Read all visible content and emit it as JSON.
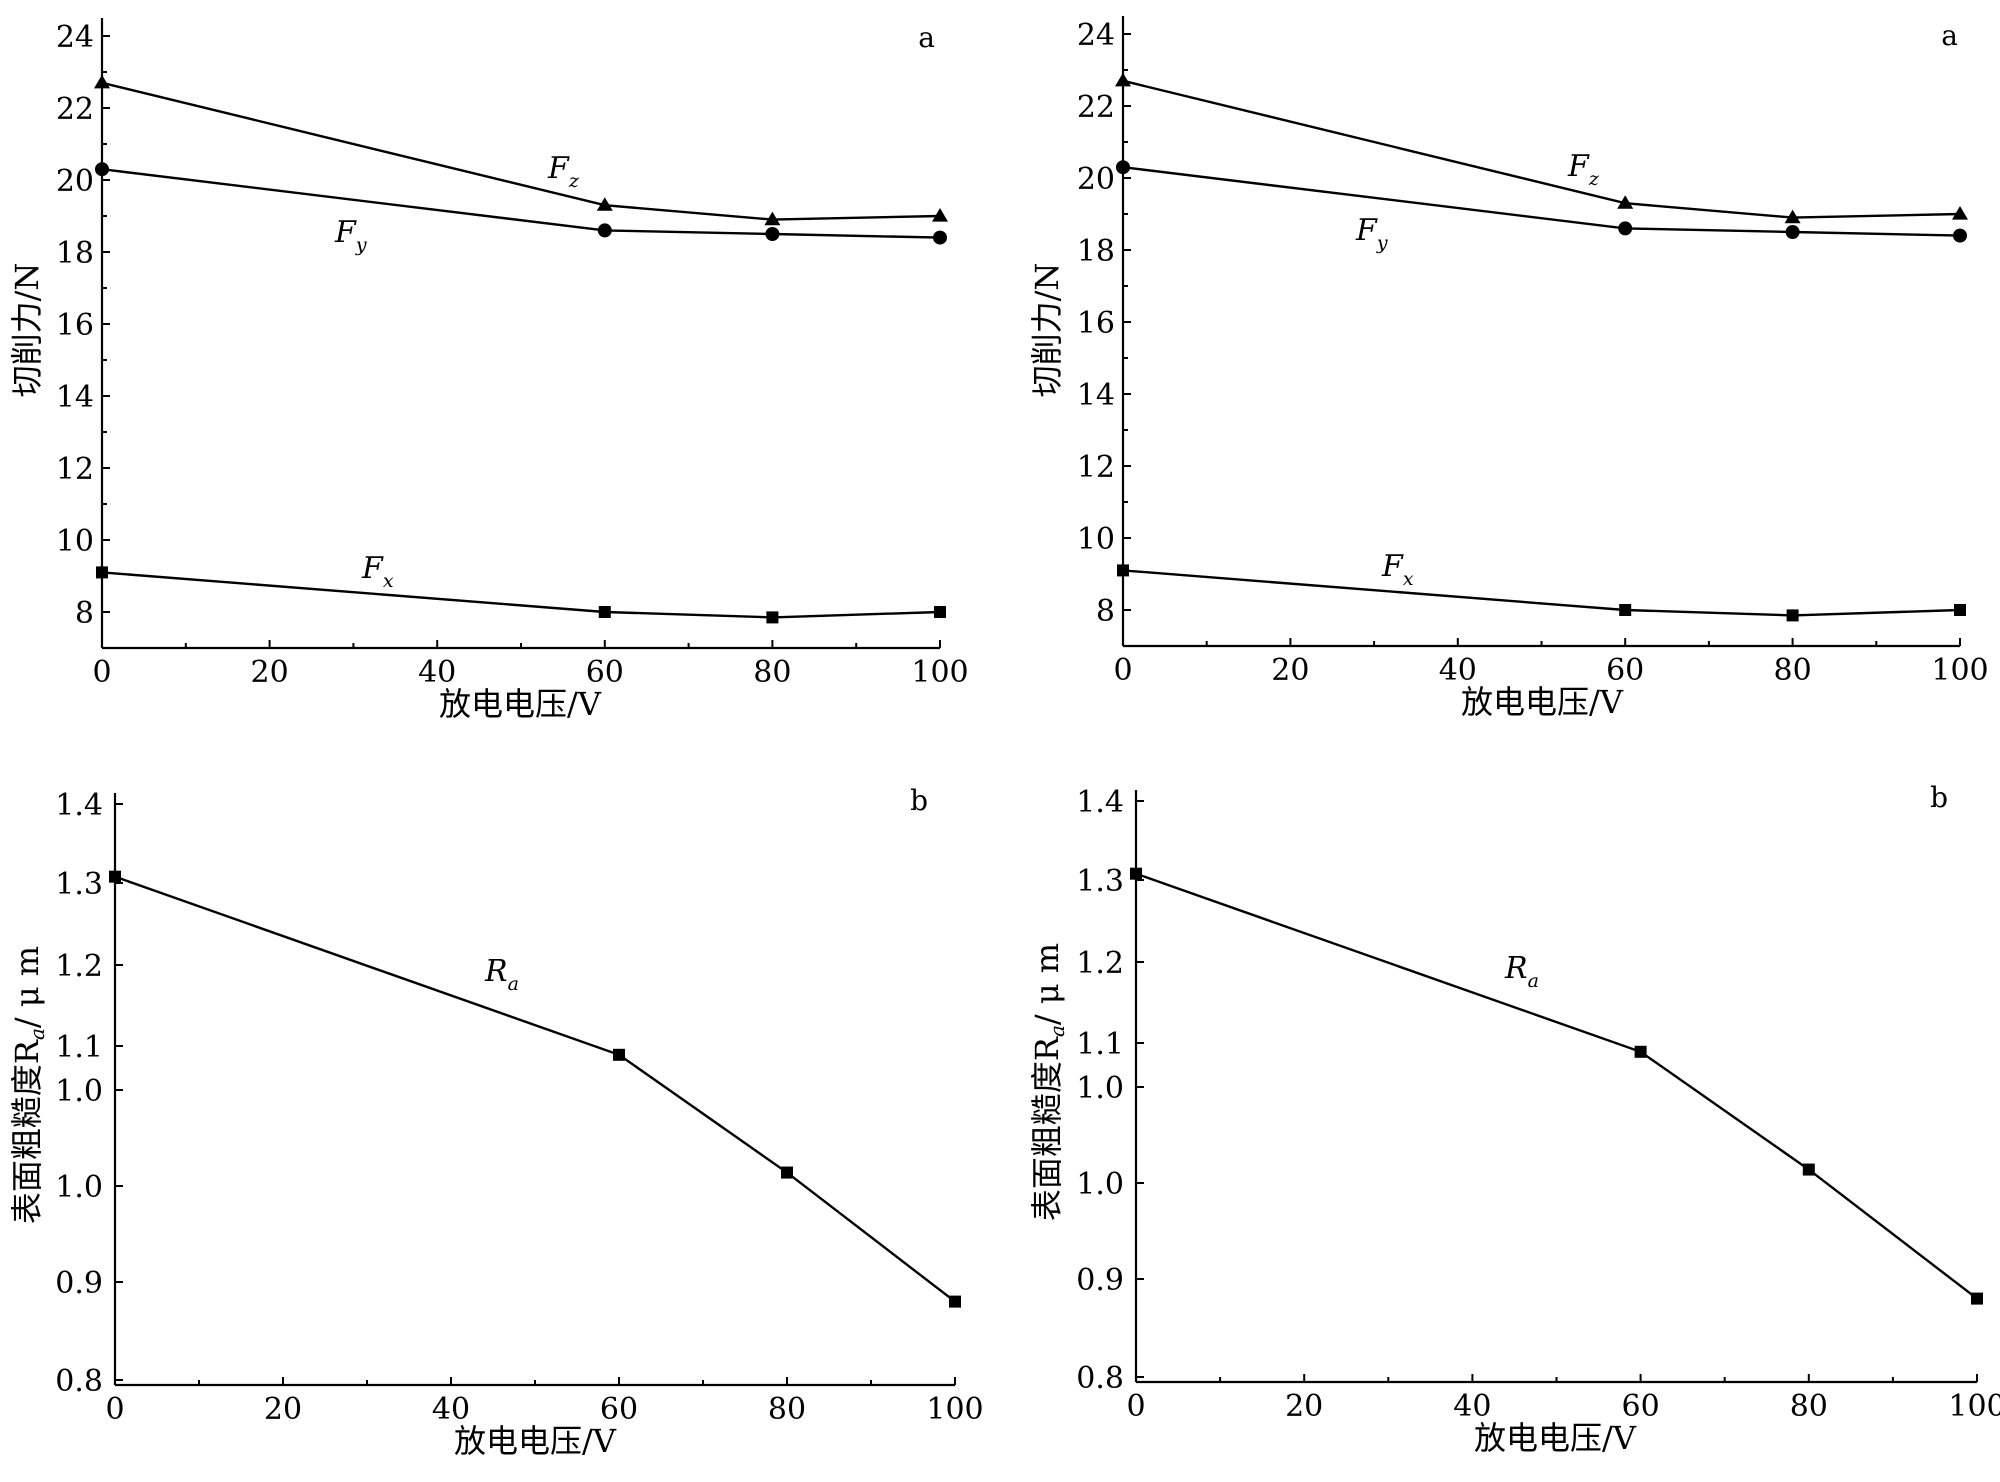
{
  "chart_data": [
    {
      "type": "line",
      "panel_label": "a",
      "xlabel": "放电电压/V",
      "ylabel": "切削力/N",
      "x_ticks": [
        "0",
        "20",
        "40",
        "60",
        "80",
        "100"
      ],
      "y_ticks": [
        "8",
        "10",
        "12",
        "14",
        "16",
        "18",
        "20",
        "22",
        "24"
      ],
      "xlim": [
        0,
        100
      ],
      "ylim": [
        7,
        24.5
      ],
      "grid": false,
      "x": [
        0,
        60,
        80,
        100
      ],
      "series": [
        {
          "name": "F",
          "sub": "z",
          "marker": "triangle",
          "values": [
            22.7,
            19.3,
            18.9,
            19.0
          ]
        },
        {
          "name": "F",
          "sub": "y",
          "marker": "circle",
          "values": [
            20.3,
            18.6,
            18.5,
            18.4
          ]
        },
        {
          "name": "F",
          "sub": "x",
          "marker": "square",
          "values": [
            9.1,
            8.0,
            7.85,
            8.0
          ]
        }
      ]
    },
    {
      "type": "line",
      "panel_label": "b",
      "xlabel": "放电电压/V",
      "ylabel": "表面粗糙度R",
      "ylabel_sub": "a",
      "ylabel_unit": "/ μ m",
      "x_ticks": [
        "0",
        "20",
        "40",
        "60",
        "80",
        "100"
      ],
      "y_ticks": [
        "0.8",
        "0.9",
        "1.0",
        "1.0",
        "1.1",
        "1.2",
        "1.3",
        "1.4"
      ],
      "xlim": [
        0,
        100
      ],
      "ylim": [
        0.8,
        1.4
      ],
      "grid": false,
      "x": [
        0,
        60,
        80,
        100
      ],
      "series": [
        {
          "name": "R",
          "sub": "a",
          "marker": "square",
          "values": [
            1.308,
            1.09,
            1.007,
            0.88
          ]
        }
      ]
    },
    {
      "type": "line",
      "panel_label": "a",
      "xlabel": "放电电压/V",
      "ylabel": "切削力/N",
      "x_ticks": [
        "0",
        "20",
        "40",
        "60",
        "80",
        "100"
      ],
      "y_ticks": [
        "8",
        "10",
        "12",
        "14",
        "16",
        "18",
        "20",
        "22",
        "24"
      ],
      "xlim": [
        0,
        100
      ],
      "ylim": [
        7,
        24.5
      ],
      "grid": false,
      "x": [
        0,
        60,
        80,
        100
      ],
      "series": [
        {
          "name": "F",
          "sub": "z",
          "marker": "triangle",
          "values": [
            22.7,
            19.3,
            18.9,
            19.0
          ]
        },
        {
          "name": "F",
          "sub": "y",
          "marker": "circle",
          "values": [
            20.3,
            18.6,
            18.5,
            18.4
          ]
        },
        {
          "name": "F",
          "sub": "x",
          "marker": "square",
          "values": [
            9.1,
            8.0,
            7.85,
            8.0
          ]
        }
      ]
    },
    {
      "type": "line",
      "panel_label": "b",
      "xlabel": "放电电压/V",
      "ylabel": "表面粗糙度R",
      "ylabel_sub": "a",
      "ylabel_unit": "/ μ m",
      "x_ticks": [
        "0",
        "20",
        "40",
        "60",
        "80",
        "100"
      ],
      "y_ticks": [
        "0.8",
        "0.9",
        "1.0",
        "1.0",
        "1.1",
        "1.2",
        "1.3",
        "1.4"
      ],
      "xlim": [
        0,
        100
      ],
      "ylim": [
        0.8,
        1.4
      ],
      "grid": false,
      "x": [
        0,
        60,
        80,
        100
      ],
      "series": [
        {
          "name": "R",
          "sub": "a",
          "marker": "square",
          "values": [
            1.308,
            1.09,
            1.007,
            0.88
          ]
        }
      ]
    }
  ]
}
